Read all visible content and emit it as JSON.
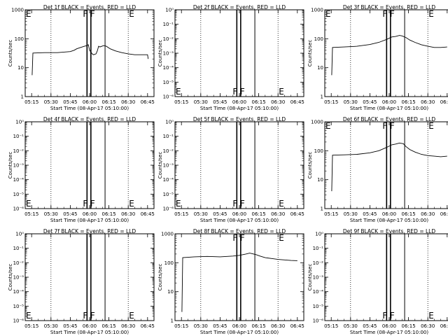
{
  "chart_data": [
    {
      "type": "line",
      "title": "Det 1f BLACK = Events, RED = LLD",
      "xlabel": "Start Time (08-Apr-17 05:10:00)",
      "ylabel": "Counts/sec",
      "y_scale": "log",
      "ylim": [
        1,
        1000
      ],
      "yticks": [
        "1",
        "10",
        "100",
        "1000"
      ],
      "x": [
        "05:15",
        "05:30",
        "05:45",
        "06:00",
        "06:15",
        "06:30",
        "06:45"
      ],
      "markers": [
        {
          "label": "E",
          "x": "05:15"
        },
        {
          "label": "F",
          "x": "05:58"
        },
        {
          "label": "F",
          "x": "06:01"
        },
        {
          "label": "E",
          "x": "06:30"
        }
      ],
      "dotted_lines": [
        "05:30",
        "06:30"
      ],
      "solid_lines": [
        "05:58",
        "06:01",
        "06:12"
      ],
      "series": [
        {
          "values": [
            [
              5.4,
              5.5
            ],
            [
              6.0,
              32
            ],
            [
              15,
              33
            ],
            [
              25,
              33
            ],
            [
              35,
              36
            ],
            [
              38,
              40
            ],
            [
              40,
              45
            ],
            [
              43,
              50
            ],
            [
              46,
              55
            ],
            [
              48,
              58
            ],
            [
              49,
              62
            ],
            [
              50,
              40
            ],
            [
              52,
              30
            ],
            [
              53,
              28
            ],
            [
              55,
              30
            ],
            [
              56,
              38
            ],
            [
              57,
              55
            ],
            [
              58,
              52
            ],
            [
              61,
              58
            ],
            [
              63,
              55
            ],
            [
              66,
              45
            ],
            [
              70,
              38
            ],
            [
              75,
              33
            ],
            [
              80,
              30
            ],
            [
              85,
              28
            ],
            [
              90,
              28
            ],
            [
              95,
              28
            ],
            [
              95.5,
              20
            ]
          ]
        }
      ]
    },
    {
      "type": "line",
      "title": "Det 2f BLACK = Events, RED = LLD",
      "xlabel": "Start Time (08-Apr-17 05:10:00)",
      "ylabel": "Counts/sec",
      "y_scale": "log",
      "ylim": [
        1e-06,
        1
      ],
      "yticks": [
        "10⁻⁶",
        "10⁻⁵",
        "10⁻⁴",
        "10⁻³",
        "10⁻²",
        "10⁻¹",
        "10⁰"
      ],
      "x": [
        "05:15",
        "05:30",
        "05:45",
        "06:00",
        "06:15",
        "06:30",
        "06:45"
      ],
      "markers": [
        {
          "label": "E",
          "x": "05:15"
        },
        {
          "label": "F",
          "x": "05:58"
        },
        {
          "label": "F",
          "x": "06:01"
        },
        {
          "label": "E",
          "x": "06:30"
        }
      ],
      "dotted_lines": [
        "05:30",
        "06:30"
      ],
      "solid_lines": [
        "05:58",
        "06:01",
        "06:12"
      ],
      "series": []
    },
    {
      "type": "line",
      "title": "Det 3f BLACK = Events, RED = LLD",
      "xlabel": "Start Time (08-Apr-17 05:10:00)",
      "ylabel": "Counts/sec",
      "y_scale": "log",
      "ylim": [
        1,
        1000
      ],
      "yticks": [
        "1",
        "10",
        "100",
        "1000"
      ],
      "x": [
        "05:15",
        "05:30",
        "05:45",
        "06:00",
        "06:15",
        "06:30",
        "06:45"
      ],
      "markers": [
        {
          "label": "E",
          "x": "05:15"
        },
        {
          "label": "F",
          "x": "05:58"
        },
        {
          "label": "F",
          "x": "06:01"
        },
        {
          "label": "E",
          "x": "06:30"
        }
      ],
      "dotted_lines": [
        "05:30",
        "06:30"
      ],
      "solid_lines": [
        "05:58",
        "06:01",
        "06:12"
      ],
      "series": [
        {
          "values": [
            [
              5.4,
              5.5
            ],
            [
              6.0,
              50
            ],
            [
              15,
              52
            ],
            [
              25,
              55
            ],
            [
              35,
              63
            ],
            [
              42,
              75
            ],
            [
              48,
              95
            ],
            [
              52,
              115
            ],
            [
              55,
              120
            ],
            [
              58,
              130
            ],
            [
              60,
              125
            ],
            [
              63,
              110
            ],
            [
              66,
              90
            ],
            [
              70,
              75
            ],
            [
              75,
              62
            ],
            [
              80,
              55
            ],
            [
              85,
              50
            ],
            [
              90,
              50
            ],
            [
              95,
              52
            ]
          ]
        }
      ]
    },
    {
      "type": "line",
      "title": "Det 4f BLACK = Events, RED = LLD",
      "xlabel": "Start Time (08-Apr-17 05:10:00)",
      "ylabel": "Counts/sec",
      "y_scale": "log",
      "ylim": [
        1e-06,
        1
      ],
      "yticks": [
        "10⁻⁶",
        "10⁻⁵",
        "10⁻⁴",
        "10⁻³",
        "10⁻²",
        "10⁻¹",
        "10⁰"
      ],
      "x": [
        "05:15",
        "05:30",
        "05:45",
        "06:00",
        "06:15",
        "06:30",
        "06:45"
      ],
      "markers": [
        {
          "label": "E",
          "x": "05:15"
        },
        {
          "label": "F",
          "x": "05:58"
        },
        {
          "label": "F",
          "x": "06:01"
        },
        {
          "label": "E",
          "x": "06:30"
        }
      ],
      "dotted_lines": [
        "05:30",
        "06:30"
      ],
      "solid_lines": [
        "05:58",
        "06:01",
        "06:12"
      ],
      "series": []
    },
    {
      "type": "line",
      "title": "Det 5f BLACK = Events, RED = LLD",
      "xlabel": "Start Time (08-Apr-17 05:10:00)",
      "ylabel": "Counts/sec",
      "y_scale": "log",
      "ylim": [
        1e-06,
        1
      ],
      "yticks": [
        "10⁻⁶",
        "10⁻⁵",
        "10⁻⁴",
        "10⁻³",
        "10⁻²",
        "10⁻¹",
        "10⁰"
      ],
      "x": [
        "05:15",
        "05:30",
        "05:45",
        "06:00",
        "06:15",
        "06:30",
        "06:45"
      ],
      "markers": [
        {
          "label": "E",
          "x": "05:15"
        },
        {
          "label": "F",
          "x": "05:58"
        },
        {
          "label": "F",
          "x": "06:01"
        },
        {
          "label": "E",
          "x": "06:30"
        }
      ],
      "dotted_lines": [
        "05:30",
        "06:30"
      ],
      "solid_lines": [
        "05:58",
        "06:01",
        "06:12"
      ],
      "series": []
    },
    {
      "type": "line",
      "title": "Det 6f BLACK = Events, RED = LLD",
      "xlabel": "Start Time (08-Apr-17 05:10:00)",
      "ylabel": "Counts/sec",
      "y_scale": "log",
      "ylim": [
        1,
        1000
      ],
      "yticks": [
        "1",
        "10",
        "100",
        "1000"
      ],
      "x": [
        "05:15",
        "05:30",
        "05:45",
        "06:00",
        "06:15",
        "06:30",
        "06:45"
      ],
      "markers": [
        {
          "label": "E",
          "x": "05:15"
        },
        {
          "label": "F",
          "x": "05:58"
        },
        {
          "label": "F",
          "x": "06:01"
        },
        {
          "label": "E",
          "x": "06:30"
        }
      ],
      "dotted_lines": [
        "05:30",
        "06:30"
      ],
      "solid_lines": [
        "05:58",
        "06:01",
        "06:12"
      ],
      "series": [
        {
          "values": [
            [
              5.4,
              4
            ],
            [
              6.0,
              70
            ],
            [
              15,
              72
            ],
            [
              25,
              75
            ],
            [
              35,
              85
            ],
            [
              42,
              100
            ],
            [
              48,
              130
            ],
            [
              52,
              160
            ],
            [
              55,
              170
            ],
            [
              58,
              185
            ],
            [
              61,
              175
            ],
            [
              63,
              140
            ],
            [
              66,
              110
            ],
            [
              70,
              90
            ],
            [
              75,
              75
            ],
            [
              80,
              68
            ],
            [
              85,
              65
            ],
            [
              90,
              62
            ],
            [
              95,
              65
            ]
          ]
        }
      ]
    },
    {
      "type": "line",
      "title": "Det 7f BLACK = Events, RED = LLD",
      "xlabel": "Start Time (08-Apr-17 05:10:00)",
      "ylabel": "Counts/sec",
      "y_scale": "log",
      "ylim": [
        1e-06,
        1
      ],
      "yticks": [
        "10⁻⁶",
        "10⁻⁵",
        "10⁻⁴",
        "10⁻³",
        "10⁻²",
        "10⁻¹",
        "10⁰"
      ],
      "x": [
        "05:15",
        "05:30",
        "05:45",
        "06:00",
        "06:15",
        "06:30",
        "06:45"
      ],
      "markers": [
        {
          "label": "E",
          "x": "05:15"
        },
        {
          "label": "F",
          "x": "05:58"
        },
        {
          "label": "F",
          "x": "06:01"
        },
        {
          "label": "E",
          "x": "06:30"
        }
      ],
      "dotted_lines": [
        "05:30",
        "06:30"
      ],
      "solid_lines": [
        "05:58",
        "06:01",
        "06:12"
      ],
      "series": []
    },
    {
      "type": "line",
      "title": "Det 8f BLACK = Events, RED = LLD",
      "xlabel": "Start Time (08-Apr-17 05:10:00)",
      "ylabel": "Counts/sec",
      "y_scale": "log",
      "ylim": [
        1,
        1000
      ],
      "yticks": [
        "1",
        "10",
        "100",
        "1000"
      ],
      "x": [
        "05:15",
        "05:30",
        "05:45",
        "06:00",
        "06:15",
        "06:30",
        "06:45"
      ],
      "markers": [
        {
          "label": "F",
          "x": "05:58"
        },
        {
          "label": "F",
          "x": "06:01"
        },
        {
          "label": "E",
          "x": "06:30"
        }
      ],
      "dotted_lines": [
        "05:30",
        "06:30"
      ],
      "solid_lines": [
        "05:58",
        "06:01",
        "06:12"
      ],
      "series": [
        {
          "values": [
            [
              5.4,
              2
            ],
            [
              6.0,
              150
            ],
            [
              15,
              160
            ],
            [
              25,
              165
            ],
            [
              35,
              160
            ],
            [
              45,
              170
            ],
            [
              50,
              180
            ],
            [
              55,
              200
            ],
            [
              58,
              215
            ],
            [
              60,
              205
            ],
            [
              63,
              190
            ],
            [
              66,
              170
            ],
            [
              70,
              150
            ],
            [
              75,
              140
            ],
            [
              80,
              130
            ],
            [
              85,
              125
            ],
            [
              90,
              120
            ],
            [
              95,
              118
            ]
          ]
        }
      ]
    },
    {
      "type": "line",
      "title": "Det 9f BLACK = Events, RED = LLD",
      "xlabel": "Start Time (08-Apr-17 05:10:00)",
      "ylabel": "Counts/sec",
      "y_scale": "log",
      "ylim": [
        1e-06,
        1
      ],
      "yticks": [
        "10⁻⁶",
        "10⁻⁵",
        "10⁻⁴",
        "10⁻³",
        "10⁻²",
        "10⁻¹",
        "10⁰"
      ],
      "x": [
        "05:15",
        "05:30",
        "05:45",
        "06:00",
        "06:15",
        "06:30",
        "06:45"
      ],
      "markers": [
        {
          "label": "F",
          "x": "05:58"
        },
        {
          "label": "F",
          "x": "06:01"
        },
        {
          "label": "E",
          "x": "06:30"
        }
      ],
      "dotted_lines": [
        "05:30",
        "06:30"
      ],
      "solid_lines": [
        "05:58",
        "06:01",
        "06:12"
      ],
      "series": []
    }
  ]
}
